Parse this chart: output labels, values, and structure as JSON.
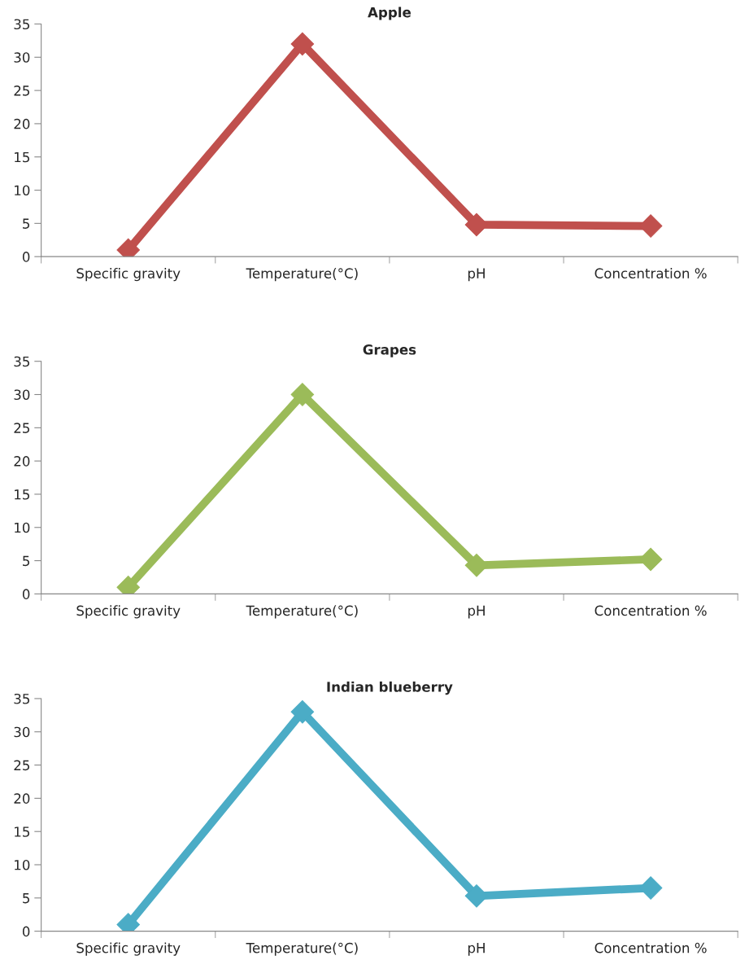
{
  "chart_data": [
    {
      "type": "line",
      "title": "Apple",
      "categories": [
        "Specific gravity",
        "Temperature(°C)",
        "pH",
        "Concentration %"
      ],
      "series": [
        {
          "color": "#c0504d",
          "values": [
            1,
            32,
            4.8,
            4.6
          ]
        }
      ],
      "ylim": [
        0,
        35
      ],
      "yticks": [
        0,
        5,
        10,
        15,
        20,
        25,
        30,
        35
      ],
      "marker": "diamond",
      "line_style": "solid",
      "grid": false
    },
    {
      "type": "line",
      "title": "Grapes",
      "categories": [
        "Specific gravity",
        "Temperature(°C)",
        "pH",
        "Concentration %"
      ],
      "series": [
        {
          "color": "#9bbb59",
          "values": [
            1,
            30,
            4.3,
            5.2
          ]
        }
      ],
      "ylim": [
        0,
        35
      ],
      "yticks": [
        0,
        5,
        10,
        15,
        20,
        25,
        30,
        35
      ],
      "marker": "diamond",
      "line_style": "solid",
      "grid": false
    },
    {
      "type": "line",
      "title": "Indian blueberry",
      "categories": [
        "Specific gravity",
        "Temperature(°C)",
        "pH",
        "Concentration %"
      ],
      "series": [
        {
          "color": "#4bacc6",
          "values": [
            1,
            33,
            5.3,
            6.5
          ]
        }
      ],
      "ylim": [
        0,
        35
      ],
      "yticks": [
        0,
        5,
        10,
        15,
        20,
        25,
        30,
        35
      ],
      "marker": "diamond",
      "line_style": "solid",
      "grid": false
    }
  ]
}
